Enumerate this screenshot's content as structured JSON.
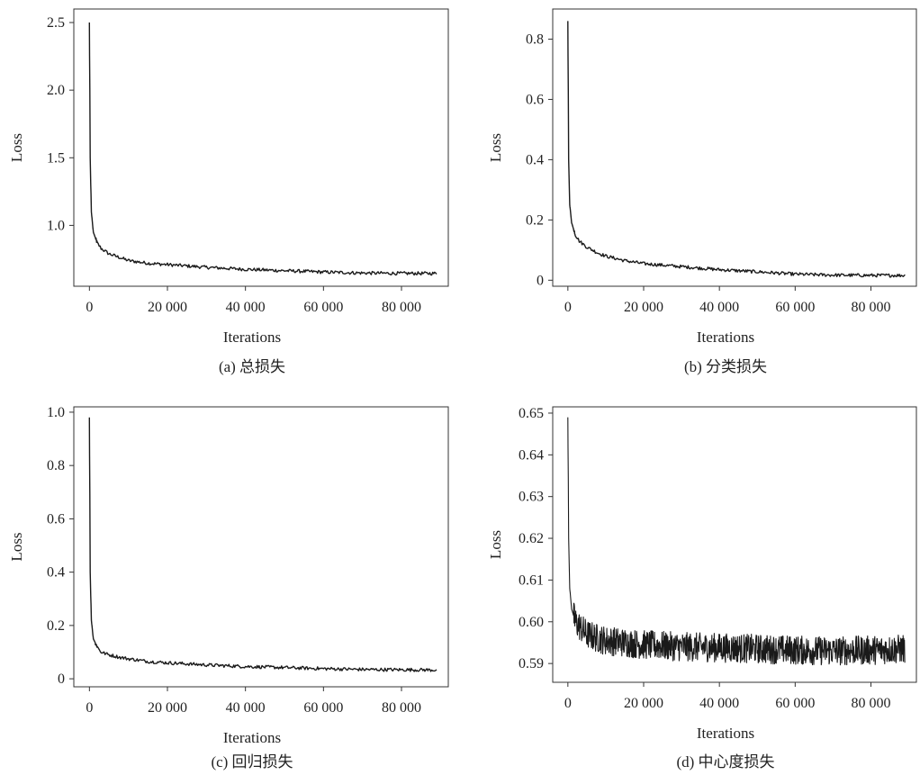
{
  "figure": {
    "background": "#ffffff",
    "line_color": "#1a1a1a",
    "axis_color": "#333333"
  },
  "chart_data": [
    {
      "type": "line",
      "caption": "(a) 总损失",
      "xlabel": "Iterations",
      "ylabel": "Loss",
      "xlim": [
        -4000,
        92000
      ],
      "ylim": [
        0.55,
        2.6
      ],
      "xticks": [
        0,
        20000,
        40000,
        60000,
        80000
      ],
      "xtick_labels": [
        "0",
        "20 000",
        "40 000",
        "60 000",
        "80 000"
      ],
      "yticks": [
        1.0,
        1.5,
        2.0,
        2.5
      ],
      "ytick_labels": [
        "1.0",
        "1.5",
        "2.0",
        "2.5"
      ],
      "grid": false,
      "series": [
        {
          "x": [
            0,
            200,
            500,
            1000,
            2000,
            3000,
            5000,
            8000,
            10000,
            15000,
            20000,
            30000,
            40000,
            50000,
            60000,
            70000,
            80000,
            89000
          ],
          "y": [
            2.5,
            1.5,
            1.1,
            0.95,
            0.87,
            0.83,
            0.79,
            0.76,
            0.74,
            0.72,
            0.71,
            0.69,
            0.675,
            0.665,
            0.655,
            0.648,
            0.645,
            0.645
          ]
        }
      ]
    },
    {
      "type": "line",
      "caption": "(b) 分类损失",
      "xlabel": "Iterations",
      "ylabel": "Loss",
      "xlim": [
        -4000,
        92000
      ],
      "ylim": [
        -0.02,
        0.9
      ],
      "xticks": [
        0,
        20000,
        40000,
        60000,
        80000
      ],
      "xtick_labels": [
        "0",
        "20 000",
        "40 000",
        "60 000",
        "80 000"
      ],
      "yticks": [
        0,
        0.2,
        0.4,
        0.6,
        0.8
      ],
      "ytick_labels": [
        "0",
        "0.2",
        "0.4",
        "0.6",
        "0.8"
      ],
      "grid": false,
      "series": [
        {
          "x": [
            0,
            200,
            500,
            1000,
            2000,
            3000,
            5000,
            8000,
            10000,
            15000,
            20000,
            30000,
            40000,
            50000,
            60000,
            70000,
            80000,
            89000
          ],
          "y": [
            0.86,
            0.4,
            0.25,
            0.19,
            0.15,
            0.13,
            0.11,
            0.09,
            0.08,
            0.065,
            0.055,
            0.045,
            0.035,
            0.028,
            0.02,
            0.017,
            0.016,
            0.016
          ]
        }
      ]
    },
    {
      "type": "line",
      "caption": "(c) 回归损失",
      "xlabel": "Iterations",
      "ylabel": "Loss",
      "xlim": [
        -4000,
        92000
      ],
      "ylim": [
        -0.03,
        1.02
      ],
      "xticks": [
        0,
        20000,
        40000,
        60000,
        80000
      ],
      "xtick_labels": [
        "0",
        "20 000",
        "40 000",
        "60 000",
        "80 000"
      ],
      "yticks": [
        0,
        0.2,
        0.4,
        0.6,
        0.8,
        1.0
      ],
      "ytick_labels": [
        "0",
        "0.2",
        "0.4",
        "0.6",
        "0.8",
        "1.0"
      ],
      "grid": false,
      "series": [
        {
          "x": [
            0,
            200,
            500,
            1000,
            2000,
            3000,
            5000,
            8000,
            10000,
            15000,
            20000,
            30000,
            40000,
            50000,
            60000,
            70000,
            80000,
            89000
          ],
          "y": [
            0.98,
            0.4,
            0.22,
            0.15,
            0.12,
            0.1,
            0.09,
            0.08,
            0.075,
            0.065,
            0.06,
            0.052,
            0.046,
            0.042,
            0.038,
            0.035,
            0.034,
            0.033
          ]
        }
      ]
    },
    {
      "type": "line",
      "caption": "(d) 中心度损失",
      "xlabel": "Iterations",
      "ylabel": "Loss",
      "xlim": [
        -4000,
        92000
      ],
      "ylim": [
        0.5855,
        0.6515
      ],
      "xticks": [
        0,
        20000,
        40000,
        60000,
        80000
      ],
      "xtick_labels": [
        "0",
        "20 000",
        "40 000",
        "60 000",
        "80 000"
      ],
      "yticks": [
        0.59,
        0.6,
        0.61,
        0.62,
        0.63,
        0.64,
        0.65
      ],
      "ytick_labels": [
        "0.59",
        "0.60",
        "0.61",
        "0.62",
        "0.63",
        "0.64",
        "0.65"
      ],
      "grid": false,
      "series": [
        {
          "x": [
            0,
            200,
            500,
            1000,
            2000,
            3000,
            5000,
            8000,
            10000,
            15000,
            20000,
            30000,
            40000,
            50000,
            60000,
            70000,
            80000,
            89000
          ],
          "y": [
            0.649,
            0.62,
            0.608,
            0.603,
            0.6,
            0.599,
            0.597,
            0.596,
            0.5955,
            0.595,
            0.5945,
            0.594,
            0.5938,
            0.5935,
            0.5932,
            0.593,
            0.5932,
            0.5935
          ]
        }
      ]
    }
  ]
}
